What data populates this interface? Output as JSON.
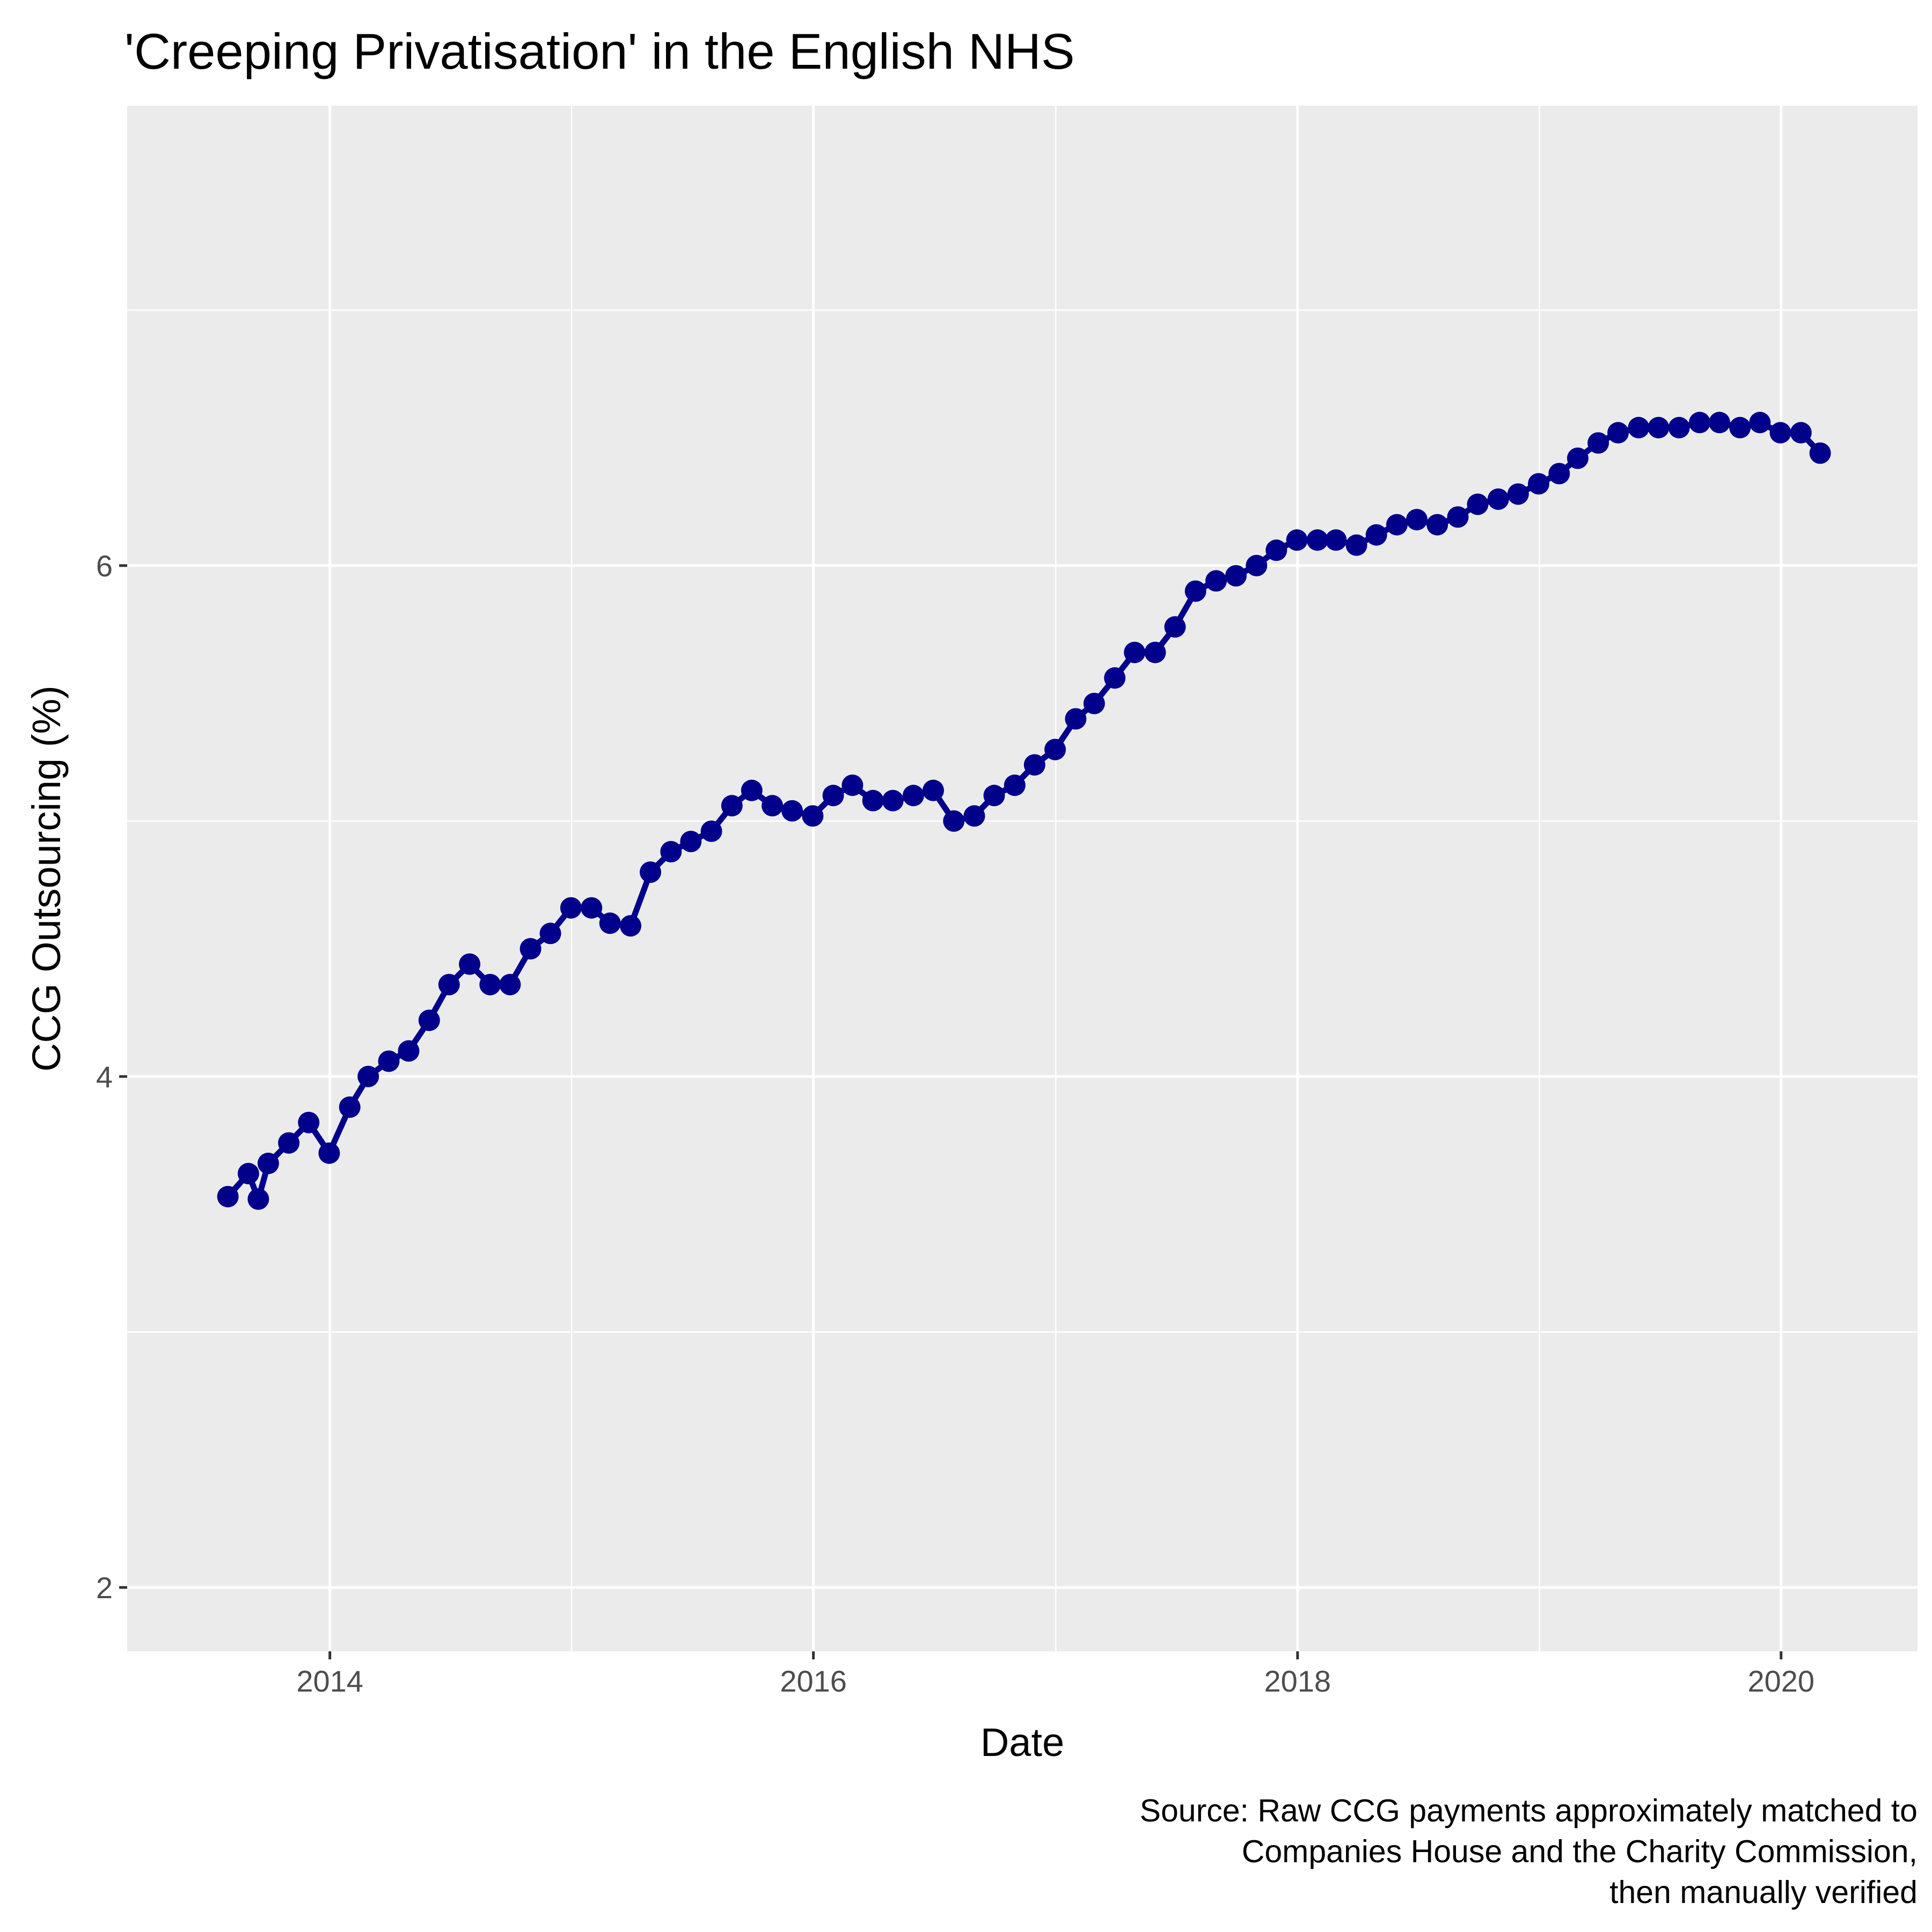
{
  "chart_data": {
    "type": "line",
    "title": "'Creeping Privatisation' in the English NHS",
    "xlabel": "Date",
    "ylabel": "CCG Outsourcing (%)",
    "caption": [
      "Source: Raw CCG payments approximately matched to",
      "Companies House and the Charity Commission,",
      "then manually verified"
    ],
    "x_ticks": [
      "2014",
      "2016",
      "2018",
      "2020"
    ],
    "y_ticks": [
      "2",
      "4",
      "6"
    ],
    "xlim": [
      "2013-03-01",
      "2020-07-25"
    ],
    "ylim": [
      1.75,
      7.8
    ],
    "grid": true,
    "legend": "none",
    "colors": {
      "series": "#00008B",
      "panel": "#EBEBEB",
      "grid": "#FFFFFF"
    },
    "series": [
      {
        "x": [
          "2013-07-31",
          "2013-08-31",
          "2013-09-15",
          "2013-09-30",
          "2013-10-31",
          "2013-11-30",
          "2013-12-31",
          "2014-01-31",
          "2014-02-28",
          "2014-03-31",
          "2014-04-30",
          "2014-05-31",
          "2014-06-30",
          "2014-07-31",
          "2014-08-31",
          "2014-09-30",
          "2014-10-31",
          "2014-11-30",
          "2014-12-31",
          "2015-01-31",
          "2015-02-28",
          "2015-03-31",
          "2015-04-30",
          "2015-05-31",
          "2015-06-30",
          "2015-07-31",
          "2015-08-31",
          "2015-09-30",
          "2015-10-31",
          "2015-11-30",
          "2015-12-31",
          "2016-01-31",
          "2016-02-29",
          "2016-03-31",
          "2016-04-30",
          "2016-05-31",
          "2016-06-30",
          "2016-07-31",
          "2016-08-31",
          "2016-09-30",
          "2016-10-31",
          "2016-11-30",
          "2016-12-31",
          "2017-01-31",
          "2017-02-28",
          "2017-03-31",
          "2017-04-30",
          "2017-05-31",
          "2017-06-30",
          "2017-07-31",
          "2017-08-31",
          "2017-09-30",
          "2017-10-31",
          "2017-11-30",
          "2017-12-31",
          "2018-01-31",
          "2018-02-28",
          "2018-03-31",
          "2018-04-30",
          "2018-05-31",
          "2018-06-30",
          "2018-07-31",
          "2018-08-31",
          "2018-09-30",
          "2018-10-31",
          "2018-11-30",
          "2018-12-31",
          "2019-01-31",
          "2019-02-28",
          "2019-03-31",
          "2019-04-30",
          "2019-05-31",
          "2019-06-30",
          "2019-07-31",
          "2019-08-31",
          "2019-09-30",
          "2019-10-31",
          "2019-11-30",
          "2019-12-31",
          "2020-01-31",
          "2020-02-29"
        ],
        "y": [
          3.53,
          3.62,
          3.52,
          3.66,
          3.74,
          3.82,
          3.7,
          3.88,
          4.0,
          4.06,
          4.1,
          4.22,
          4.36,
          4.44,
          4.36,
          4.36,
          4.5,
          4.56,
          4.66,
          4.66,
          4.6,
          4.59,
          4.8,
          4.88,
          4.92,
          4.96,
          5.06,
          5.12,
          5.06,
          5.04,
          5.02,
          5.1,
          5.14,
          5.08,
          5.08,
          5.1,
          5.12,
          5.0,
          5.02,
          5.1,
          5.14,
          5.22,
          5.28,
          5.4,
          5.46,
          5.56,
          5.66,
          5.66,
          5.76,
          5.9,
          5.94,
          5.96,
          6.0,
          6.06,
          6.1,
          6.1,
          6.1,
          6.08,
          6.12,
          6.16,
          6.18,
          6.16,
          6.19,
          6.24,
          6.26,
          6.28,
          6.32,
          6.36,
          6.42,
          6.48,
          6.52,
          6.54,
          6.54,
          6.54,
          6.56,
          6.56,
          6.54,
          6.56,
          6.52,
          6.52,
          6.44
        ]
      }
    ]
  }
}
